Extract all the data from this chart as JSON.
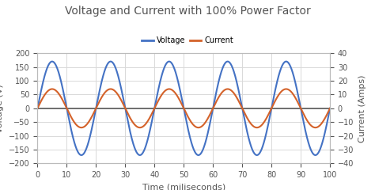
{
  "title": "Voltage and Current with 100% Power Factor",
  "xlabel": "Time (miliseconds)",
  "ylabel_left": "Voltage (V)",
  "ylabel_right": "Current (Amps)",
  "x_min": 0,
  "x_max": 100,
  "y_left_min": -200,
  "y_left_max": 200,
  "y_right_min": -40,
  "y_right_max": 40,
  "voltage_amplitude": 170,
  "current_amplitude": 14,
  "frequency_hz": 50,
  "phase_shift_deg": 0,
  "voltage_color": "#4472c4",
  "current_color": "#d4622a",
  "zero_line_color": "#595959",
  "background_color": "#ffffff",
  "grid_color": "#d9d9d9",
  "title_fontsize": 10,
  "label_fontsize": 8,
  "tick_fontsize": 7,
  "legend_voltage": "Voltage",
  "legend_current": "Current",
  "x_ticks": [
    0,
    10,
    20,
    30,
    40,
    50,
    60,
    70,
    80,
    90,
    100
  ],
  "y_left_ticks": [
    -200,
    -150,
    -100,
    -50,
    0,
    50,
    100,
    150,
    200
  ],
  "y_right_ticks": [
    -40,
    -30,
    -20,
    -10,
    0,
    10,
    20,
    30,
    40
  ],
  "line_width": 1.5
}
